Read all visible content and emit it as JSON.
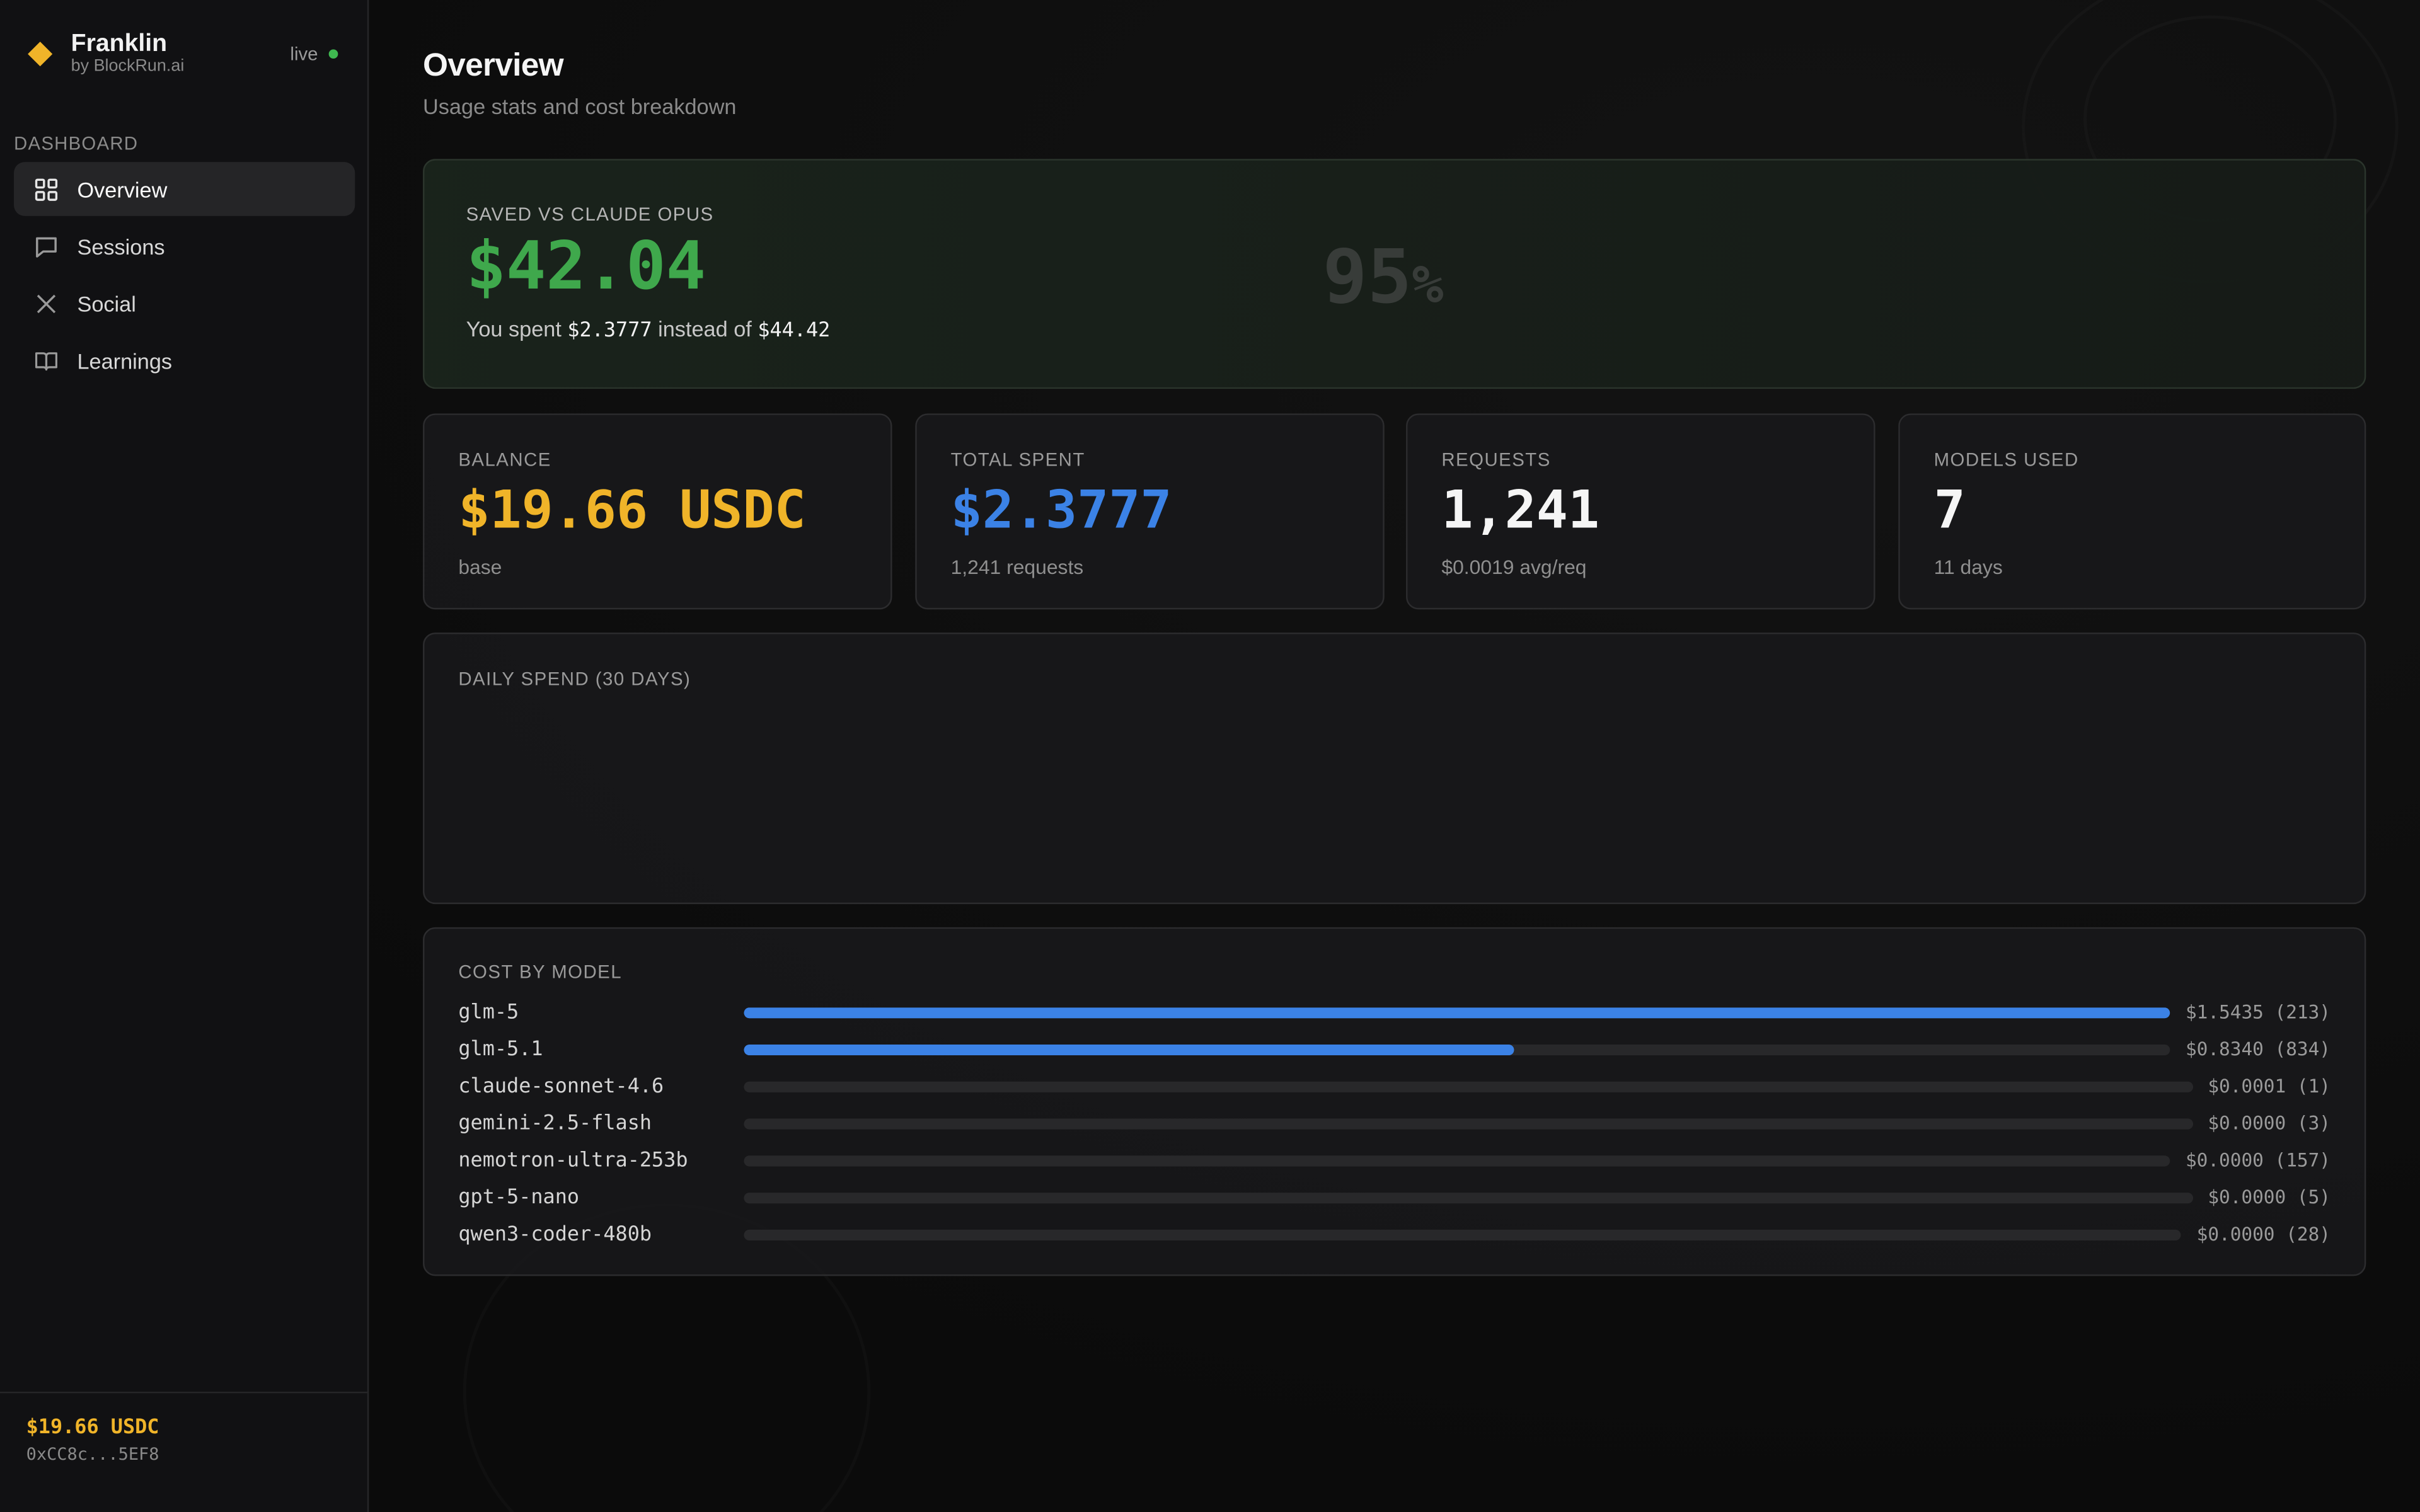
{
  "brand": {
    "name": "Franklin",
    "sub": "by BlockRun.ai",
    "status": "live"
  },
  "sidebar": {
    "section": "DASHBOARD",
    "items": [
      {
        "label": "Overview",
        "icon": "grid-icon",
        "active": true
      },
      {
        "label": "Sessions",
        "icon": "chat-icon",
        "active": false
      },
      {
        "label": "Social",
        "icon": "x-logo-icon",
        "active": false
      },
      {
        "label": "Learnings",
        "icon": "book-icon",
        "active": false
      }
    ],
    "wallet": {
      "balance": "$19.66 USDC",
      "address": "0xCC8c...5EF8"
    }
  },
  "page": {
    "title": "Overview",
    "subtitle": "Usage stats and cost breakdown"
  },
  "savings": {
    "label": "SAVED VS CLAUDE OPUS",
    "amount": "$42.04",
    "percent": "95",
    "percent_unit": "%",
    "note_prefix": "You spent",
    "spent": "$2.3777",
    "note_mid": "instead of",
    "opus_cost": "$44.42"
  },
  "stats": [
    {
      "label": "BALANCE",
      "value": "$19.66 USDC",
      "sub": "base",
      "color": "#f0b429"
    },
    {
      "label": "TOTAL SPENT",
      "value": "$2.3777",
      "sub": "1,241 requests",
      "color": "#3b82e6"
    },
    {
      "label": "REQUESTS",
      "value": "1,241",
      "sub": "$0.0019 avg/req",
      "color": "#f5f5f5"
    },
    {
      "label": "MODELS USED",
      "value": "7",
      "sub": "11 days",
      "color": "#f5f5f5"
    }
  ],
  "daily_spend": {
    "label": "DAILY SPEND (30 DAYS)"
  },
  "cost_by_model": {
    "label": "COST BY MODEL",
    "rows": [
      {
        "model": "glm-5",
        "cost": "$1.5435 (213)",
        "fraction": 1.0
      },
      {
        "model": "glm-5.1",
        "cost": "$0.8340 (834)",
        "fraction": 0.54
      },
      {
        "model": "claude-sonnet-4.6",
        "cost": "$0.0001 (1)",
        "fraction": 0
      },
      {
        "model": "gemini-2.5-flash",
        "cost": "$0.0000 (3)",
        "fraction": 0
      },
      {
        "model": "nemotron-ultra-253b",
        "cost": "$0.0000 (157)",
        "fraction": 0
      },
      {
        "model": "gpt-5-nano",
        "cost": "$0.0000 (5)",
        "fraction": 0
      },
      {
        "model": "qwen3-coder-480b",
        "cost": "$0.0000 (28)",
        "fraction": 0
      }
    ]
  },
  "colors": {
    "accent_green": "#3fa84c",
    "accent_yellow": "#f0b429",
    "accent_blue": "#3b82e6",
    "live_dot": "#3fb950"
  }
}
